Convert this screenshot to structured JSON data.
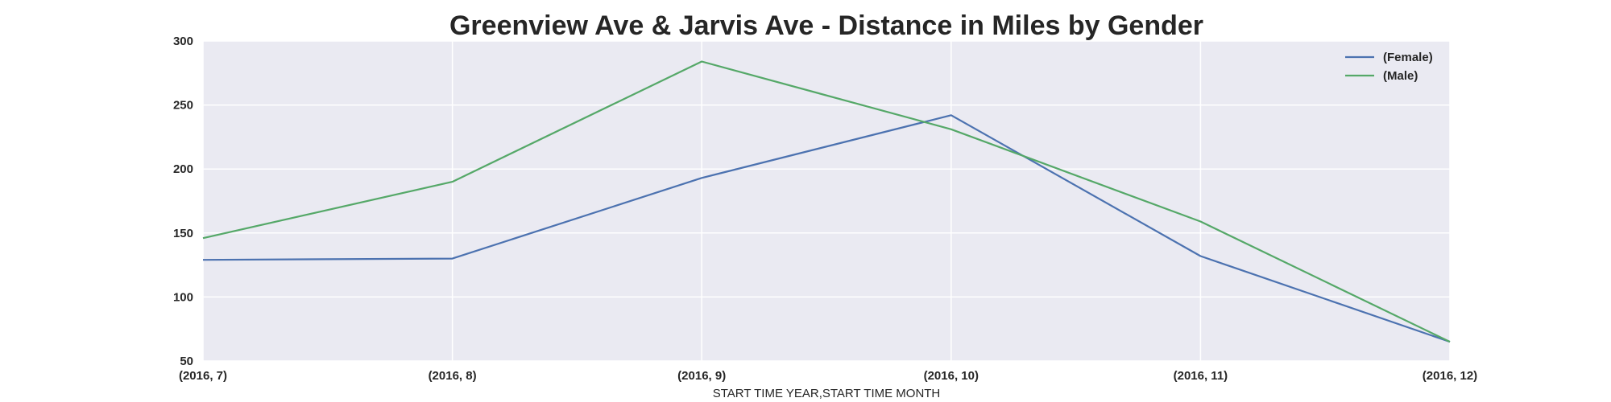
{
  "chart_data": {
    "type": "line",
    "title": "Greenview Ave & Jarvis Ave - Distance in Miles by Gender",
    "xlabel": "START TIME YEAR,START TIME MONTH",
    "ylabel": "",
    "categories": [
      "(2016, 7)",
      "(2016, 8)",
      "(2016, 9)",
      "(2016, 10)",
      "(2016, 11)",
      "(2016, 12)"
    ],
    "ylim": [
      50,
      300
    ],
    "yticks": [
      50,
      100,
      150,
      200,
      250,
      300
    ],
    "grid": true,
    "legend_position": "top-right",
    "series": [
      {
        "name": "(Female)",
        "color": "#4c72b0",
        "values": [
          129,
          130,
          193,
          242,
          132,
          65
        ]
      },
      {
        "name": "(Male)",
        "color": "#55a868",
        "values": [
          146,
          190,
          284,
          231,
          159,
          65
        ]
      }
    ]
  }
}
